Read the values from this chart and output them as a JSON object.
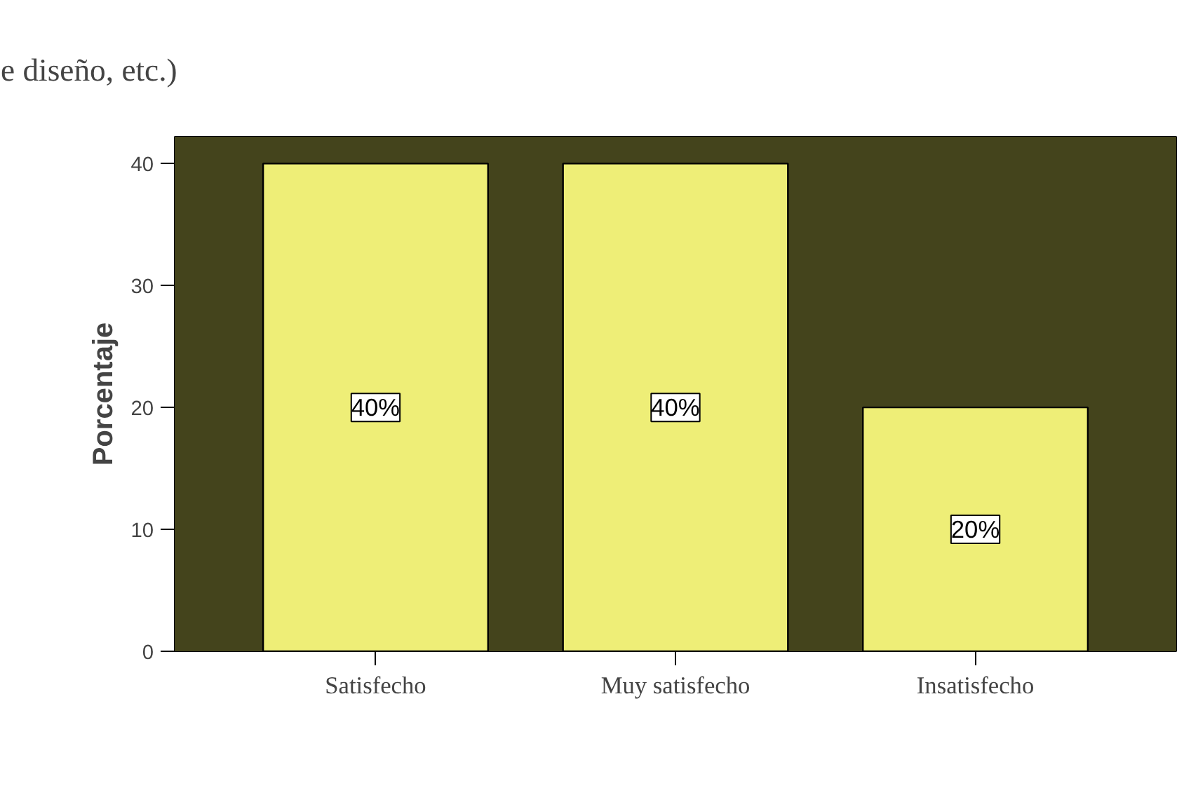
{
  "chart_data": {
    "type": "bar",
    "ylabel": "Porcentaje",
    "categories": [
      "Satisfecho",
      "Muy satisfecho",
      "Insatisfecho"
    ],
    "values": [
      40,
      40,
      20
    ],
    "color": "#eeee77",
    "value_labels": [
      "40%",
      "40%",
      "20%"
    ],
    "ylim": [
      0,
      42.2
    ],
    "yticks": [
      0,
      10,
      20,
      30,
      40
    ],
    "bands": [
      {
        "axis": "y",
        "from": 0,
        "to": 42.2,
        "color": "#44441c"
      }
    ],
    "annotations": [
      "e diseño, etc.)"
    ]
  }
}
